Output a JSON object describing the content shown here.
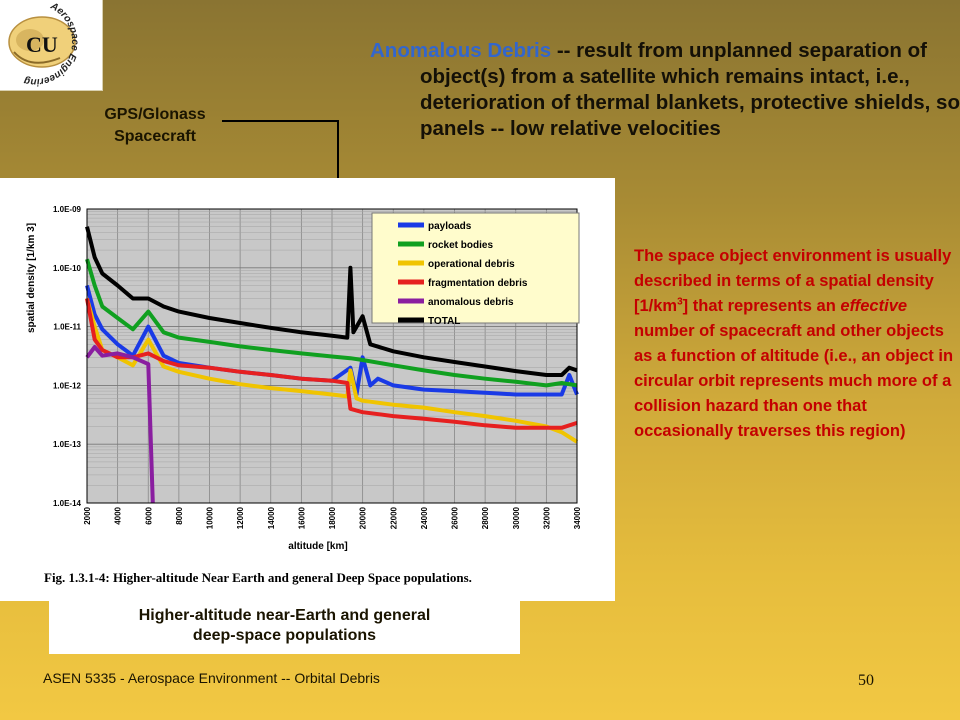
{
  "logo": {
    "text": "Aerospace Engineering",
    "initials": "CU"
  },
  "gps_label": {
    "line1": "GPS/Glonass",
    "line2": "Spacecraft"
  },
  "main_text": {
    "term": "Anomalous Debris",
    "body": " -- result from unplanned separation of object(s) from a satellite which remains intact, i.e., deterioration of thermal blankets, protective shields, solar panels -- low relative velocities"
  },
  "side_text": {
    "part1": "The space object environment is usually described in terms of a spatial density [1/km",
    "sup": "3",
    "part2": "] that represents an ",
    "em": "effective",
    "part3": " number of spacecraft and other objects as a function of altitude (i.e., an object in circular orbit represents much more of a collision hazard than one that occasionally traverses this region)"
  },
  "caption": {
    "line1": "Higher-altitude near-Earth and general",
    "line2": "deep-space populations"
  },
  "footer": {
    "left": "ASEN 5335 - Aerospace Environment -- Orbital Debris",
    "page": "50"
  },
  "colors": {
    "term": "#3366cc",
    "side_text": "#c40000"
  },
  "chart_data": {
    "type": "line",
    "title": "Fig. 1.3.1-4: Higher-altitude Near Earth and general Deep Space populations.",
    "xlabel": "altitude [km]",
    "ylabel": "spatial density [1/km 3]",
    "xlim": [
      2000,
      34000
    ],
    "ylim_log10": [
      -14,
      -9
    ],
    "log_y": true,
    "grid": true,
    "legend_position": "top-right",
    "x_ticks": [
      "2000",
      "4000",
      "6000",
      "8000",
      "10000",
      "12000",
      "14000",
      "16000",
      "18000",
      "20000",
      "22000",
      "24000",
      "26000",
      "28000",
      "30000",
      "32000",
      "34000"
    ],
    "y_ticks": [
      "1.0E-09",
      "1.0E-10",
      "1.0E-11",
      "1.0E-12",
      "1.0E-13",
      "1.0E-14"
    ],
    "series": [
      {
        "name": "payloads",
        "color": "#1a3ae6",
        "points": [
          [
            2000,
            5e-11
          ],
          [
            2500,
            1.6e-11
          ],
          [
            3000,
            9e-12
          ],
          [
            4000,
            5e-12
          ],
          [
            5000,
            3.2e-12
          ],
          [
            6000,
            1e-11
          ],
          [
            7000,
            3.2e-12
          ],
          [
            8000,
            2.4e-12
          ],
          [
            10000,
            2e-12
          ],
          [
            12000,
            1.7e-12
          ],
          [
            14000,
            1.5e-12
          ],
          [
            16000,
            1.3e-12
          ],
          [
            18000,
            1.2e-12
          ],
          [
            19200,
            2e-12
          ],
          [
            19600,
            7e-13
          ],
          [
            20000,
            3e-12
          ],
          [
            20500,
            1e-12
          ],
          [
            21000,
            1.3e-12
          ],
          [
            22000,
            1e-12
          ],
          [
            24000,
            8.5e-13
          ],
          [
            26000,
            8e-13
          ],
          [
            28000,
            7.5e-13
          ],
          [
            30000,
            7e-13
          ],
          [
            32000,
            7e-13
          ],
          [
            33000,
            7e-13
          ],
          [
            33500,
            1.5e-12
          ],
          [
            34000,
            7e-13
          ]
        ]
      },
      {
        "name": "rocket bodies",
        "color": "#10a020",
        "points": [
          [
            2000,
            1.4e-10
          ],
          [
            2500,
            5e-11
          ],
          [
            3000,
            2.2e-11
          ],
          [
            4000,
            1.4e-11
          ],
          [
            5000,
            9e-12
          ],
          [
            6000,
            1.8e-11
          ],
          [
            7000,
            8e-12
          ],
          [
            8000,
            6.5e-12
          ],
          [
            10000,
            5.5e-12
          ],
          [
            12000,
            4.6e-12
          ],
          [
            14000,
            4e-12
          ],
          [
            16000,
            3.5e-12
          ],
          [
            18000,
            3.1e-12
          ],
          [
            19200,
            2.9e-12
          ],
          [
            20000,
            2.7e-12
          ],
          [
            22000,
            2.2e-12
          ],
          [
            24000,
            1.8e-12
          ],
          [
            26000,
            1.5e-12
          ],
          [
            28000,
            1.3e-12
          ],
          [
            30000,
            1.15e-12
          ],
          [
            32000,
            1e-12
          ],
          [
            33000,
            1.1e-12
          ],
          [
            34000,
            1e-12
          ]
        ]
      },
      {
        "name": "operational debris",
        "color": "#f0c400",
        "points": [
          [
            2000,
            3e-11
          ],
          [
            2500,
            1e-11
          ],
          [
            3000,
            4e-12
          ],
          [
            4000,
            3e-12
          ],
          [
            5000,
            2.2e-12
          ],
          [
            6000,
            6e-12
          ],
          [
            7000,
            2.1e-12
          ],
          [
            8000,
            1.7e-12
          ],
          [
            10000,
            1.3e-12
          ],
          [
            12000,
            1.05e-12
          ],
          [
            14000,
            9e-13
          ],
          [
            16000,
            8e-13
          ],
          [
            18000,
            7e-13
          ],
          [
            19000,
            6.5e-13
          ],
          [
            19200,
            1.8e-12
          ],
          [
            19600,
            6e-13
          ],
          [
            20000,
            5.5e-13
          ],
          [
            22000,
            4.7e-13
          ],
          [
            24000,
            4.2e-13
          ],
          [
            26000,
            3.5e-13
          ],
          [
            28000,
            3e-13
          ],
          [
            30000,
            2.5e-13
          ],
          [
            32000,
            2e-13
          ],
          [
            33000,
            1.6e-13
          ],
          [
            34000,
            1.1e-13
          ]
        ]
      },
      {
        "name": "fragmentation debris",
        "color": "#e62020",
        "points": [
          [
            2000,
            3e-11
          ],
          [
            2500,
            6e-12
          ],
          [
            3000,
            4e-12
          ],
          [
            4000,
            3e-12
          ],
          [
            5000,
            3e-12
          ],
          [
            6000,
            3.5e-12
          ],
          [
            7000,
            2.6e-12
          ],
          [
            8000,
            2.2e-12
          ],
          [
            10000,
            2e-12
          ],
          [
            12000,
            1.7e-12
          ],
          [
            14000,
            1.5e-12
          ],
          [
            16000,
            1.3e-12
          ],
          [
            18000,
            1.2e-12
          ],
          [
            19000,
            1.1e-12
          ],
          [
            19200,
            4e-13
          ],
          [
            20000,
            3.5e-13
          ],
          [
            22000,
            3e-13
          ],
          [
            24000,
            2.7e-13
          ],
          [
            26000,
            2.4e-13
          ],
          [
            28000,
            2.1e-13
          ],
          [
            30000,
            1.9e-13
          ],
          [
            32000,
            1.9e-13
          ],
          [
            33000,
            1.9e-13
          ],
          [
            34000,
            2.3e-13
          ]
        ]
      },
      {
        "name": "anomalous debris",
        "color": "#8a1ea0",
        "points": [
          [
            2000,
            3e-12
          ],
          [
            2500,
            4.5e-12
          ],
          [
            3000,
            3.2e-12
          ],
          [
            4000,
            3.5e-12
          ],
          [
            5000,
            3e-12
          ],
          [
            6000,
            2.3e-12
          ],
          [
            6300,
            1e-14
          ]
        ]
      },
      {
        "name": "TOTAL",
        "color": "#000000",
        "points": [
          [
            2000,
            5e-10
          ],
          [
            2500,
            1.5e-10
          ],
          [
            3000,
            8e-11
          ],
          [
            4000,
            5e-11
          ],
          [
            5000,
            3e-11
          ],
          [
            6000,
            3e-11
          ],
          [
            7000,
            2.2e-11
          ],
          [
            8000,
            1.8e-11
          ],
          [
            10000,
            1.4e-11
          ],
          [
            12000,
            1.15e-11
          ],
          [
            14000,
            9.5e-12
          ],
          [
            16000,
            8e-12
          ],
          [
            18000,
            7e-12
          ],
          [
            19000,
            6.5e-12
          ],
          [
            19200,
            1e-10
          ],
          [
            19400,
            8e-12
          ],
          [
            20000,
            1.5e-11
          ],
          [
            20500,
            5e-12
          ],
          [
            22000,
            3.8e-12
          ],
          [
            24000,
            3e-12
          ],
          [
            26000,
            2.5e-12
          ],
          [
            28000,
            2.1e-12
          ],
          [
            30000,
            1.75e-12
          ],
          [
            32000,
            1.5e-12
          ],
          [
            33000,
            1.5e-12
          ],
          [
            33500,
            2e-12
          ],
          [
            34000,
            1.8e-12
          ]
        ]
      }
    ]
  }
}
